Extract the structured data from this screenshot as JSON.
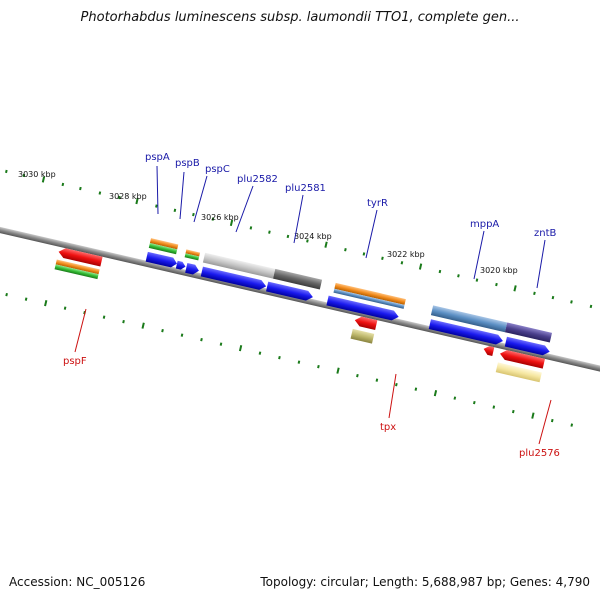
{
  "title": "Photorhabdus luminescens subsp. laumondii TTO1, complete gen...",
  "footer": {
    "accession": "Accession: NC_005126",
    "summary": "Topology: circular; Length: 5,688,987 bp; Genes: 4,790"
  },
  "scale_labels": [
    "3030 kbp",
    "3028 kbp",
    "3026 kbp",
    "3024 kbp",
    "3022 kbp",
    "3020 kbp"
  ],
  "genes_top": [
    "pspA",
    "pspB",
    "pspC",
    "plu2582",
    "plu2581",
    "tyrR",
    "mppA",
    "zntB"
  ],
  "genes_bottom": [
    "pspF",
    "tpx",
    "plu2576"
  ],
  "colors": {
    "backbone": "#888888",
    "tick": "#1a7a1a",
    "forward_cds": "#1a1aee",
    "reverse_cds": "#ee1111",
    "cog_orange": "#f28c1e",
    "cog_green": "#33bb33",
    "cog_steelblue": "#5b8fc4",
    "cog_gray_light": "#c8c8c8",
    "cog_gray_dark": "#666666",
    "cog_purple": "#4a3f8c",
    "cog_khaki": "#bdb76b",
    "cog_paleyellow": "#f5e6a0",
    "top_label_color": "#1a1aa8",
    "bottom_label_color": "#cc1111"
  }
}
